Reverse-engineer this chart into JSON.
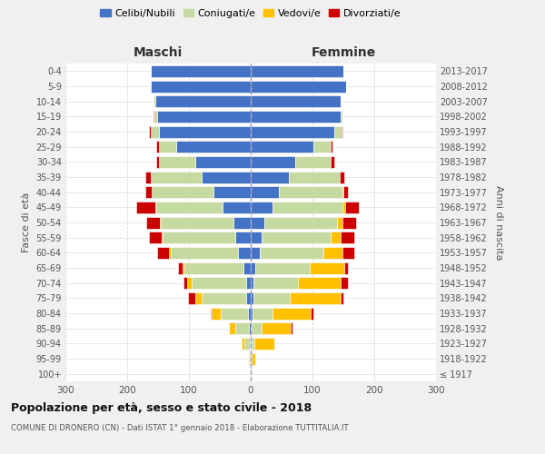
{
  "age_groups": [
    "100+",
    "95-99",
    "90-94",
    "85-89",
    "80-84",
    "75-79",
    "70-74",
    "65-69",
    "60-64",
    "55-59",
    "50-54",
    "45-49",
    "40-44",
    "35-39",
    "30-34",
    "25-29",
    "20-24",
    "15-19",
    "10-14",
    "5-9",
    "0-4"
  ],
  "birth_years": [
    "≤ 1917",
    "1918-1922",
    "1923-1927",
    "1928-1932",
    "1933-1937",
    "1938-1942",
    "1943-1947",
    "1948-1952",
    "1953-1957",
    "1958-1962",
    "1963-1967",
    "1968-1972",
    "1973-1977",
    "1978-1982",
    "1983-1987",
    "1988-1992",
    "1993-1997",
    "1998-2002",
    "2003-2007",
    "2008-2012",
    "2013-2017"
  ],
  "males": {
    "celibi": [
      1,
      1,
      2,
      3,
      4,
      8,
      8,
      12,
      20,
      25,
      28,
      45,
      60,
      80,
      90,
      120,
      148,
      152,
      155,
      162,
      162
    ],
    "coniugati": [
      0,
      2,
      8,
      22,
      45,
      72,
      88,
      95,
      110,
      118,
      118,
      108,
      100,
      82,
      58,
      28,
      14,
      4,
      2,
      1,
      0
    ],
    "vedovi": [
      0,
      1,
      4,
      10,
      14,
      10,
      7,
      4,
      2,
      1,
      1,
      1,
      0,
      0,
      0,
      0,
      0,
      0,
      0,
      0,
      0
    ],
    "divorziati": [
      0,
      0,
      0,
      0,
      2,
      12,
      6,
      6,
      20,
      20,
      22,
      32,
      10,
      8,
      5,
      5,
      2,
      1,
      0,
      0,
      0
    ]
  },
  "females": {
    "nubili": [
      0,
      1,
      1,
      2,
      3,
      5,
      5,
      8,
      15,
      18,
      22,
      36,
      46,
      62,
      72,
      102,
      135,
      145,
      145,
      155,
      150
    ],
    "coniugate": [
      0,
      1,
      5,
      15,
      32,
      58,
      72,
      88,
      102,
      112,
      118,
      112,
      102,
      82,
      58,
      28,
      12,
      3,
      1,
      0,
      0
    ],
    "vedove": [
      1,
      5,
      32,
      48,
      62,
      82,
      68,
      56,
      32,
      16,
      8,
      5,
      2,
      0,
      0,
      0,
      0,
      0,
      0,
      0,
      0
    ],
    "divorziate": [
      0,
      0,
      0,
      2,
      5,
      5,
      12,
      5,
      18,
      22,
      22,
      22,
      8,
      8,
      5,
      2,
      1,
      0,
      0,
      0,
      0
    ]
  },
  "colors": {
    "celibi": "#4472c4",
    "coniugati": "#c5d9a0",
    "vedovi": "#ffc000",
    "divorziati": "#cc0000"
  },
  "xlim": 300,
  "title": "Popolazione per età, sesso e stato civile - 2018",
  "subtitle": "COMUNE DI DRONERO (CN) - Dati ISTAT 1° gennaio 2018 - Elaborazione TUTTITALIA.IT",
  "ylabel_left": "Fasce di età",
  "ylabel_right": "Anni di nascita",
  "xlabel_maschi": "Maschi",
  "xlabel_femmine": "Femmine",
  "bg_color": "#f0f0f0",
  "plot_bg_color": "#ffffff"
}
